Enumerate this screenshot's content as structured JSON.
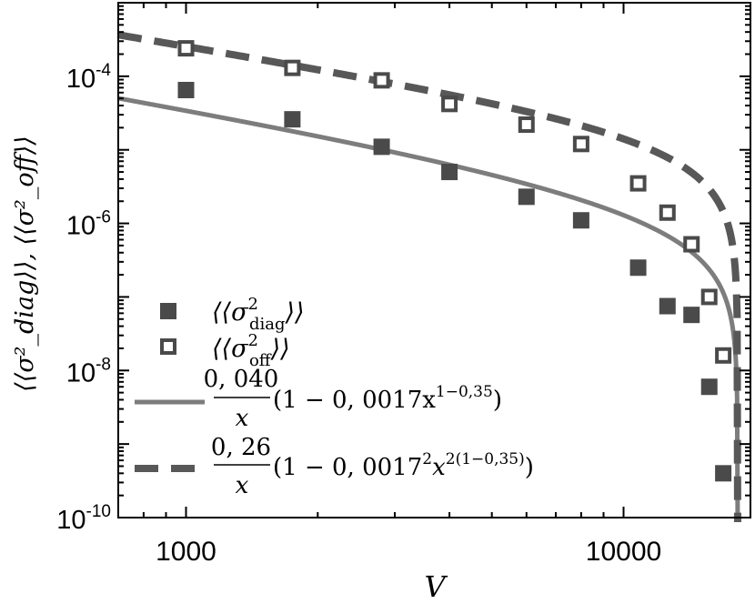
{
  "chart_data": {
    "type": "scatter",
    "x_scale": "log",
    "y_scale": "log",
    "xlim": [
      700,
      19500
    ],
    "ylim": [
      1e-10,
      0.001
    ],
    "xlabel": "V",
    "ylabel": "⟨⟨σ²_diag⟩⟩, ⟨⟨σ²_off⟩⟩",
    "x_ticks": [
      {
        "value": 1000,
        "label": "1000"
      },
      {
        "value": 10000,
        "label": "10000"
      }
    ],
    "y_ticks": [
      {
        "value": 0.0001,
        "base": "10",
        "exp": "-4"
      },
      {
        "value": 1e-06,
        "base": "10",
        "exp": "-6"
      },
      {
        "value": 1e-08,
        "base": "10",
        "exp": "-8"
      },
      {
        "value": 1e-10,
        "base": "10",
        "exp": "-10"
      }
    ],
    "grid": false,
    "legend_position": "bottom-left",
    "series": [
      {
        "kind": "scatter",
        "marker": "filled-square",
        "color": "#4a4a4a",
        "legend": {
          "base": "⟨⟨σ",
          "sup": "2",
          "sub": "diag",
          "close": "⟩⟩"
        },
        "x": [
          1000,
          1750,
          2800,
          4000,
          6000,
          8000,
          10800,
          12600,
          14300,
          15700,
          16900
        ],
        "y": [
          6.5e-05,
          2.6e-05,
          1.1e-05,
          5e-06,
          2.3e-06,
          1.1e-06,
          2.5e-07,
          7.5e-08,
          5.7e-08,
          6e-09,
          4e-10
        ]
      },
      {
        "kind": "scatter",
        "marker": "open-square",
        "color": "#4a4a4a",
        "legend": {
          "base": "⟨⟨σ",
          "sup": "2",
          "sub": "off",
          "close": "⟩⟩"
        },
        "x": [
          1000,
          1750,
          2800,
          4000,
          6000,
          8000,
          10800,
          12600,
          14300,
          15700,
          16900
        ],
        "y": [
          0.00024,
          0.00013,
          8.8e-05,
          4.2e-05,
          2.2e-05,
          1.2e-05,
          3.5e-06,
          1.4e-06,
          5.2e-07,
          1e-07,
          1.6e-08
        ]
      },
      {
        "kind": "line",
        "style": "solid",
        "color": "#7d7d7d",
        "legend": {
          "num": "0, 040",
          "den": "x",
          "tail": "(1 − 0, 0017x",
          "tail_sup": "1−0,35",
          "close": ")"
        },
        "formula": {
          "a": 0.04,
          "c": 0.0017,
          "power": 1,
          "exponent": 0.65
        }
      },
      {
        "kind": "line",
        "style": "dashed",
        "color": "#585858",
        "legend": {
          "num": "0, 26",
          "den": "x",
          "tail": "(1 − 0, 0017",
          "tail_sup1": "2",
          "tail_mid": "x",
          "tail_sup": "2(1−0,35)",
          "close": ")"
        },
        "formula": {
          "a": 0.26,
          "c": 0.0017,
          "power": 2,
          "exponent": 0.65
        }
      }
    ]
  }
}
